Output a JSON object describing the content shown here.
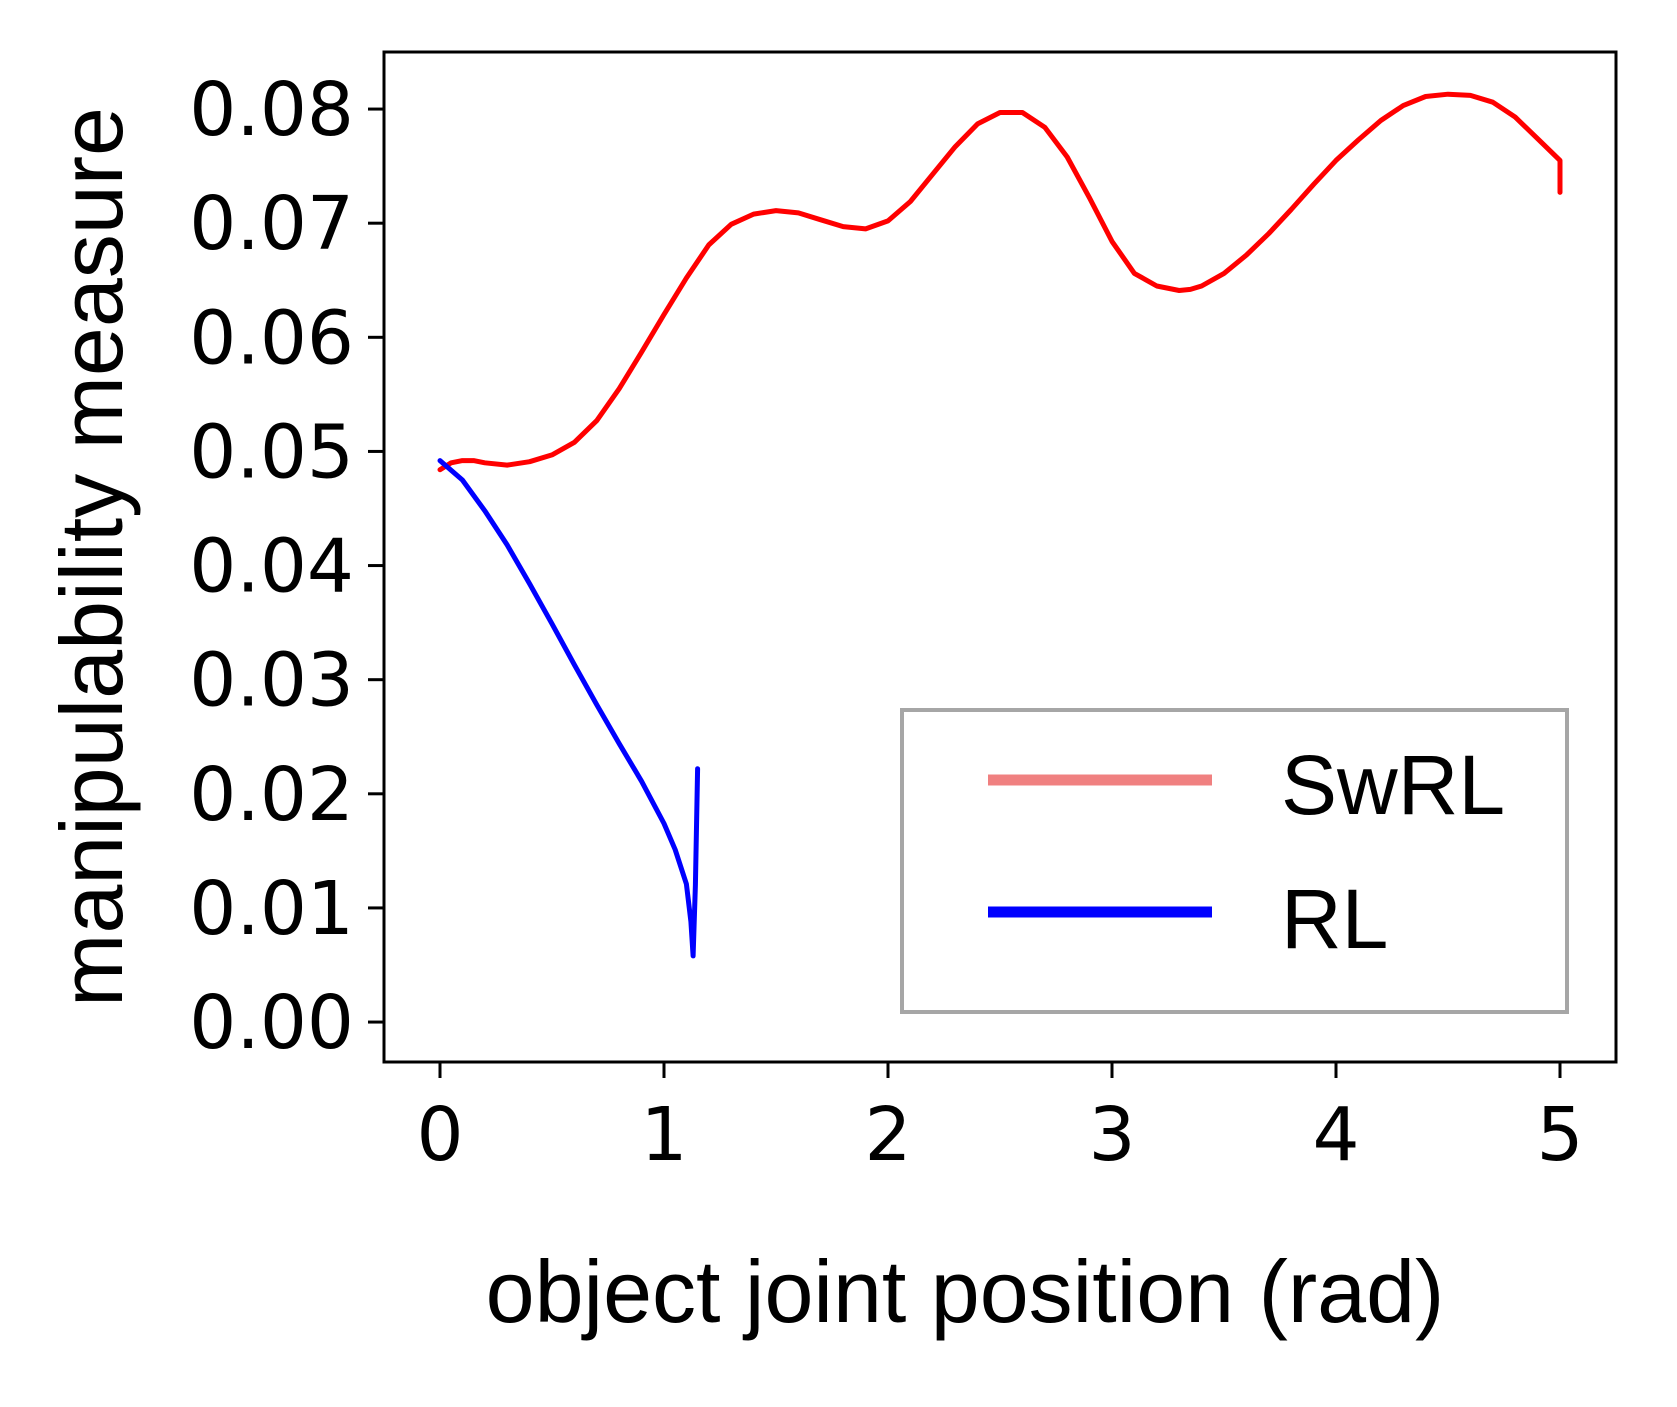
{
  "chart_data": {
    "type": "line",
    "title": "",
    "xlabel": "object joint position (rad)",
    "ylabel": "manipulability measure",
    "xlim": [
      -0.25,
      5.25
    ],
    "ylim": [
      -0.0035,
      0.085
    ],
    "xticks": [
      0,
      1,
      2,
      3,
      4,
      5
    ],
    "xtick_labels": [
      "0",
      "1",
      "2",
      "3",
      "4",
      "5"
    ],
    "yticks": [
      0.0,
      0.01,
      0.02,
      0.03,
      0.04,
      0.05,
      0.06,
      0.07,
      0.08
    ],
    "ytick_labels": [
      "0.00",
      "0.01",
      "0.02",
      "0.03",
      "0.04",
      "0.05",
      "0.06",
      "0.07",
      "0.08"
    ],
    "grid": false,
    "legend_position": "lower-right",
    "series": [
      {
        "name": "SwRL",
        "color": "#ff0000",
        "legend_color": "#f08080",
        "x": [
          0.0,
          0.05,
          0.1,
          0.15,
          0.2,
          0.3,
          0.4,
          0.5,
          0.6,
          0.7,
          0.8,
          0.9,
          1.0,
          1.1,
          1.2,
          1.3,
          1.4,
          1.5,
          1.6,
          1.7,
          1.8,
          1.9,
          2.0,
          2.1,
          2.2,
          2.3,
          2.4,
          2.5,
          2.6,
          2.7,
          2.8,
          2.9,
          3.0,
          3.1,
          3.2,
          3.3,
          3.35,
          3.4,
          3.5,
          3.6,
          3.7,
          3.8,
          3.9,
          4.0,
          4.1,
          4.2,
          4.3,
          4.4,
          4.5,
          4.6,
          4.7,
          4.8,
          4.9,
          5.0,
          5.0
        ],
        "y": [
          0.0484,
          0.049,
          0.0492,
          0.0492,
          0.049,
          0.0488,
          0.0491,
          0.0497,
          0.0508,
          0.0527,
          0.0555,
          0.0587,
          0.062,
          0.0652,
          0.0681,
          0.0699,
          0.0708,
          0.0711,
          0.0709,
          0.0703,
          0.0697,
          0.0695,
          0.0702,
          0.0719,
          0.0743,
          0.0767,
          0.0787,
          0.0797,
          0.0797,
          0.0784,
          0.0758,
          0.0722,
          0.0684,
          0.0656,
          0.0645,
          0.0641,
          0.0642,
          0.0645,
          0.0656,
          0.0672,
          0.0691,
          0.0712,
          0.0734,
          0.0755,
          0.0773,
          0.079,
          0.0803,
          0.0811,
          0.0813,
          0.0812,
          0.0806,
          0.0793,
          0.0774,
          0.0755,
          0.0727
        ]
      },
      {
        "name": "RL",
        "color": "#0000ff",
        "legend_color": "#0000ff",
        "x": [
          0.0,
          0.1,
          0.2,
          0.3,
          0.4,
          0.5,
          0.6,
          0.7,
          0.8,
          0.9,
          1.0,
          1.05,
          1.1,
          1.12,
          1.13,
          1.14,
          1.15
        ],
        "y": [
          0.0492,
          0.0475,
          0.0448,
          0.0418,
          0.0384,
          0.0349,
          0.0313,
          0.0278,
          0.0244,
          0.0211,
          0.0174,
          0.0151,
          0.0121,
          0.0088,
          0.0058,
          0.012,
          0.0222
        ]
      }
    ]
  }
}
